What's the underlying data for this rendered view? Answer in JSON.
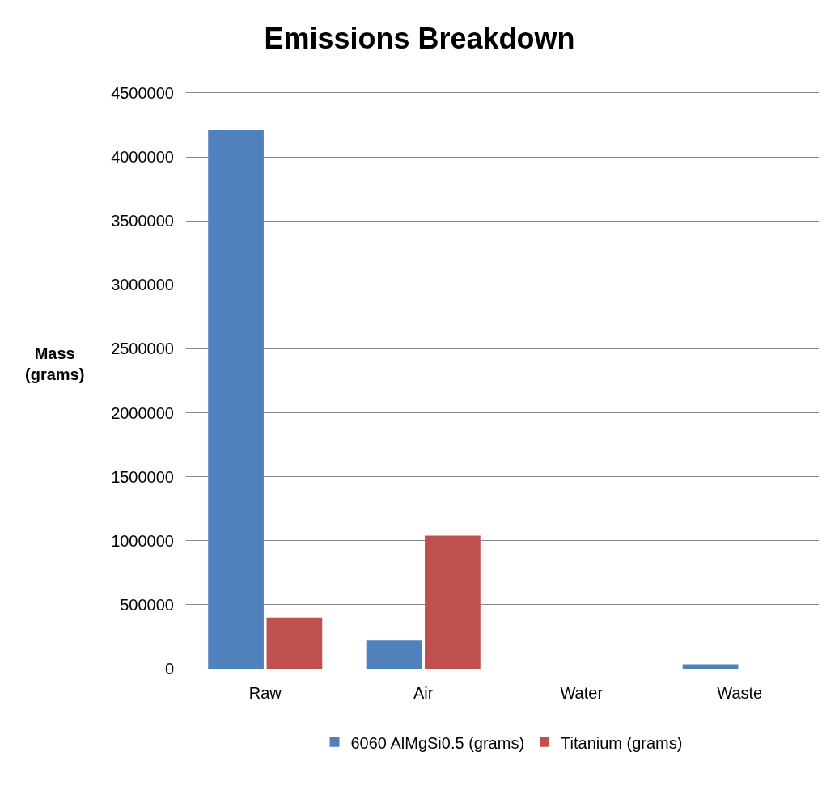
{
  "chart_data": {
    "type": "bar",
    "title": "Emissions Breakdown",
    "ylabel": "Mass (grams)",
    "categories": [
      "Raw",
      "Air",
      "Water",
      "Waste"
    ],
    "series": [
      {
        "name": "6060 AlMgSi0.5 (grams)",
        "color": "#4f81bd",
        "values": [
          4210000,
          220000,
          0,
          35000
        ]
      },
      {
        "name": "Titanium (grams)",
        "color": "#c0504d",
        "values": [
          400000,
          1040000,
          0,
          0
        ]
      }
    ],
    "ylim": [
      0,
      4500000
    ],
    "yticks": [
      0,
      500000,
      1000000,
      1500000,
      2000000,
      2500000,
      3000000,
      3500000,
      4000000,
      4500000
    ],
    "grid": "y",
    "legend": "bottom"
  }
}
